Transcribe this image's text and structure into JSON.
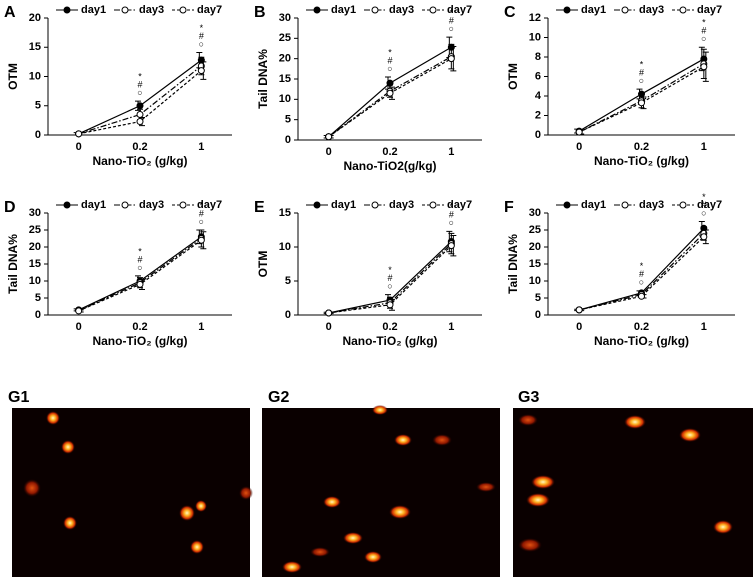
{
  "chart_data": [
    {
      "type": "line",
      "label": "A",
      "x_label": "Nano-TiO₂ (g/kg)",
      "y_label": "OTM",
      "categories": [
        "0",
        "0.2",
        "1"
      ],
      "ylim": [
        0,
        20
      ],
      "yticks": [
        0,
        5,
        10,
        15,
        20
      ],
      "series": [
        {
          "name": "day1",
          "color": "#000000",
          "line_style": "solid",
          "marker": "filled",
          "values": [
            0.2,
            5.0,
            12.8
          ],
          "errors": [
            0.2,
            0.8,
            1.3
          ]
        },
        {
          "name": "day3",
          "color": "#000000",
          "line_style": "dashdot",
          "marker": "open",
          "values": [
            0.2,
            3.5,
            11.8
          ],
          "errors": [
            0.2,
            0.9,
            1.5
          ]
        },
        {
          "name": "day7",
          "color": "#000000",
          "line_style": "dashed",
          "marker": "open",
          "values": [
            0.2,
            2.3,
            11.0
          ],
          "errors": [
            0.2,
            0.7,
            1.5
          ]
        }
      ],
      "annotations": [
        null,
        [
          "*",
          "#",
          "○"
        ],
        [
          "*",
          "#",
          "○"
        ]
      ]
    },
    {
      "type": "line",
      "label": "B",
      "x_label": "Nano-TiO2(g/kg)",
      "y_label": "Tail DNA%",
      "categories": [
        "0",
        "0.2",
        "1"
      ],
      "ylim": [
        0,
        30
      ],
      "yticks": [
        0,
        5,
        10,
        15,
        20,
        25,
        30
      ],
      "series": [
        {
          "name": "day1",
          "color": "#000000",
          "line_style": "solid",
          "marker": "filled",
          "values": [
            0.8,
            14,
            22.8
          ],
          "errors": [
            0.3,
            1.5,
            2.5
          ]
        },
        {
          "name": "day3",
          "color": "#000000",
          "line_style": "dashdot",
          "marker": "open",
          "values": [
            0.8,
            12,
            20.5
          ],
          "errors": [
            0.3,
            1.5,
            3
          ]
        },
        {
          "name": "day7",
          "color": "#000000",
          "line_style": "dashed",
          "marker": "open",
          "values": [
            0.8,
            11.5,
            20
          ],
          "errors": [
            0.3,
            1.5,
            3
          ]
        }
      ],
      "annotations": [
        null,
        [
          "*",
          "#",
          "○"
        ],
        [
          "*",
          "#",
          "○"
        ]
      ]
    },
    {
      "type": "line",
      "label": "C",
      "x_label": "Nano-TiO₂ (g/kg)",
      "y_label": "OTM",
      "categories": [
        "0",
        "0.2",
        "1"
      ],
      "ylim": [
        0,
        12
      ],
      "yticks": [
        0,
        2,
        4,
        6,
        8,
        10,
        12
      ],
      "series": [
        {
          "name": "day1",
          "color": "#000000",
          "line_style": "solid",
          "marker": "filled",
          "values": [
            0.4,
            4.2,
            7.8
          ],
          "errors": [
            0.2,
            0.5,
            1.2
          ]
        },
        {
          "name": "day3",
          "color": "#000000",
          "line_style": "dashdot",
          "marker": "open",
          "values": [
            0.3,
            3.5,
            7.3
          ],
          "errors": [
            0.2,
            0.7,
            1.5
          ]
        },
        {
          "name": "day7",
          "color": "#000000",
          "line_style": "dashed",
          "marker": "open",
          "values": [
            0.3,
            3.3,
            7.0
          ],
          "errors": [
            0.2,
            0.6,
            1.5
          ]
        }
      ],
      "annotations": [
        null,
        [
          "*",
          "#",
          "○"
        ],
        [
          "*",
          "#",
          "○"
        ]
      ]
    },
    {
      "type": "line",
      "label": "D",
      "x_label": "Nano-TiO₂ (g/kg)",
      "y_label": "Tail DNA%",
      "categories": [
        "0",
        "0.2",
        "1"
      ],
      "ylim": [
        0,
        30
      ],
      "yticks": [
        0,
        5,
        10,
        15,
        20,
        25,
        30
      ],
      "series": [
        {
          "name": "day1",
          "color": "#000000",
          "line_style": "solid",
          "marker": "filled",
          "values": [
            1.5,
            10,
            23
          ],
          "errors": [
            0.3,
            1.5,
            2
          ]
        },
        {
          "name": "day3",
          "color": "#000000",
          "line_style": "dashdot",
          "marker": "open",
          "values": [
            1.3,
            9.5,
            22.5
          ],
          "errors": [
            0.3,
            1.5,
            2.5
          ]
        },
        {
          "name": "day7",
          "color": "#000000",
          "line_style": "dashed",
          "marker": "open",
          "values": [
            1.2,
            9,
            22
          ],
          "errors": [
            0.3,
            1.5,
            2.5
          ]
        }
      ],
      "annotations": [
        null,
        [
          "*",
          "#",
          "○"
        ],
        [
          "*",
          "#",
          "○"
        ]
      ]
    },
    {
      "type": "line",
      "label": "E",
      "x_label": "Nano-TiO₂ (g/kg)",
      "y_label": "OTM",
      "categories": [
        "0",
        "0.2",
        "1"
      ],
      "ylim": [
        0,
        15
      ],
      "yticks": [
        0,
        5,
        10,
        15
      ],
      "series": [
        {
          "name": "day1",
          "color": "#000000",
          "line_style": "solid",
          "marker": "filled",
          "values": [
            0.3,
            2.2,
            10.8
          ],
          "errors": [
            0.1,
            0.8,
            1.5
          ]
        },
        {
          "name": "day3",
          "color": "#000000",
          "line_style": "dashdot",
          "marker": "open",
          "values": [
            0.3,
            1.8,
            10.5
          ],
          "errors": [
            0.1,
            0.8,
            1.5
          ]
        },
        {
          "name": "day7",
          "color": "#000000",
          "line_style": "dashed",
          "marker": "open",
          "values": [
            0.3,
            1.5,
            10.2
          ],
          "errors": [
            0.1,
            0.8,
            1.5
          ]
        }
      ],
      "annotations": [
        null,
        [
          "*",
          "#",
          "○"
        ],
        [
          "*",
          "#",
          "○"
        ]
      ]
    },
    {
      "type": "line",
      "label": "F",
      "x_label": "Nano-TiO₂ (g/kg)",
      "y_label": "Tail DNA%",
      "categories": [
        "0",
        "0.2",
        "1"
      ],
      "ylim": [
        0,
        30
      ],
      "yticks": [
        0,
        5,
        10,
        15,
        20,
        25,
        30
      ],
      "series": [
        {
          "name": "day1",
          "color": "#000000",
          "line_style": "solid",
          "marker": "filled",
          "values": [
            1.5,
            6.5,
            25.5
          ],
          "errors": [
            0.2,
            0.6,
            2
          ]
        },
        {
          "name": "day3",
          "color": "#000000",
          "line_style": "dashdot",
          "marker": "open",
          "values": [
            1.5,
            6,
            24
          ],
          "errors": [
            0.2,
            0.5,
            2
          ]
        },
        {
          "name": "day7",
          "color": "#000000",
          "line_style": "dashed",
          "marker": "open",
          "values": [
            1.5,
            5.5,
            23
          ],
          "errors": [
            0.2,
            0.5,
            2
          ]
        }
      ],
      "annotations": [
        null,
        [
          "*",
          "#",
          "○"
        ],
        [
          "*",
          "#",
          "○"
        ]
      ]
    }
  ],
  "micrographs": {
    "labels": [
      "G1",
      "G2",
      "G3"
    ]
  }
}
